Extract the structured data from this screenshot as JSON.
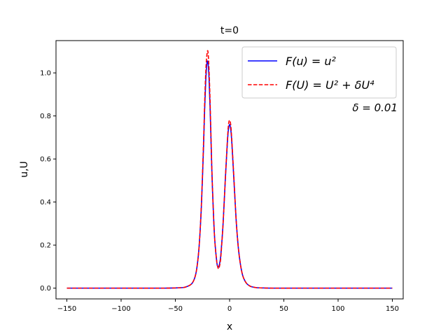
{
  "chart_data": {
    "type": "line",
    "title": "t=0",
    "xlabel": "x",
    "ylabel": "u,U",
    "xlim": [
      -160,
      160
    ],
    "ylim": [
      -0.05,
      1.15
    ],
    "x_ticks": [
      -150,
      -100,
      -50,
      0,
      50,
      100,
      150
    ],
    "x_tick_labels": [
      "−150",
      "−100",
      "−50",
      "0",
      "50",
      "100",
      "150"
    ],
    "y_ticks": [
      0.0,
      0.2,
      0.4,
      0.6,
      0.8,
      1.0
    ],
    "y_tick_labels": [
      "0.0",
      "0.2",
      "0.4",
      "0.6",
      "0.8",
      "1.0"
    ],
    "grid": false,
    "legend_position": "top-right",
    "annotation": "δ = 0.01",
    "series": [
      {
        "name": "F(u) = u²",
        "color": "#0000ff",
        "dash": "solid",
        "x": [
          -150,
          -100,
          -60,
          -45,
          -40,
          -35,
          -32,
          -30,
          -28,
          -26,
          -24,
          -23,
          -22,
          -21,
          -20,
          -19,
          -18,
          -17,
          -16,
          -14,
          -12,
          -11,
          -10,
          -9,
          -8,
          -6,
          -4,
          -2,
          -1,
          0,
          1,
          2,
          4,
          6,
          8,
          10,
          12,
          14,
          16,
          18,
          20,
          25,
          30,
          40,
          60,
          100,
          150
        ],
        "y": [
          0,
          0,
          0,
          0.002,
          0.006,
          0.02,
          0.05,
          0.1,
          0.2,
          0.38,
          0.66,
          0.83,
          0.96,
          1.04,
          1.05,
          0.98,
          0.84,
          0.66,
          0.49,
          0.25,
          0.13,
          0.1,
          0.1,
          0.12,
          0.16,
          0.3,
          0.5,
          0.68,
          0.74,
          0.76,
          0.74,
          0.68,
          0.5,
          0.32,
          0.19,
          0.11,
          0.06,
          0.035,
          0.02,
          0.012,
          0.007,
          0.002,
          0.001,
          0,
          0,
          0,
          0
        ]
      },
      {
        "name": "F(U) = U² + δU⁴",
        "color": "#ff0000",
        "dash": "dashed",
        "x": [
          -150,
          -100,
          -60,
          -45,
          -40,
          -35,
          -32,
          -30,
          -28,
          -26,
          -24,
          -23,
          -22,
          -21,
          -20,
          -19,
          -18,
          -17,
          -16,
          -14,
          -12,
          -11,
          -10,
          -9,
          -8,
          -6,
          -4,
          -2,
          -1,
          0,
          1,
          2,
          4,
          6,
          8,
          10,
          12,
          14,
          16,
          18,
          20,
          25,
          30,
          40,
          60,
          100,
          150
        ],
        "y": [
          0,
          0,
          0,
          0.002,
          0.006,
          0.02,
          0.05,
          0.1,
          0.2,
          0.39,
          0.68,
          0.86,
          1.0,
          1.08,
          1.1,
          1.02,
          0.87,
          0.68,
          0.5,
          0.25,
          0.13,
          0.1,
          0.09,
          0.11,
          0.15,
          0.3,
          0.5,
          0.69,
          0.76,
          0.78,
          0.76,
          0.69,
          0.51,
          0.32,
          0.19,
          0.11,
          0.06,
          0.035,
          0.02,
          0.012,
          0.007,
          0.002,
          0.001,
          0,
          0,
          0,
          0
        ]
      }
    ]
  }
}
